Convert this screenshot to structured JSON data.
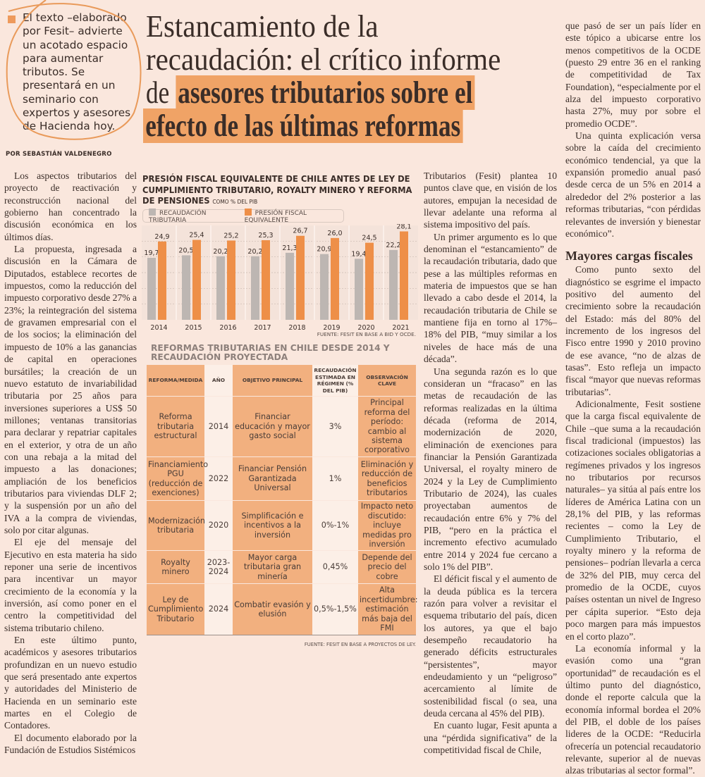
{
  "colors": {
    "accent": "#f0a366",
    "gray_bar": "#bdb6b2",
    "orange_bar": "#ee8f48",
    "background": "#fae7dd"
  },
  "blurb": {
    "icon": "square-bullet-icon",
    "text": "El texto –elaborado por Fesit– advierte un acotado espacio para aumentar tributos. Se presentará en un seminario con expertos y asesores de Hacienda hoy."
  },
  "byline": "POR SEBASTIÁN VALDENEGRO",
  "headline": {
    "line1": "Estancamiento de la",
    "line2": "recaudación: el crítico informe",
    "line3_plain": "de",
    "line3_mark": "asesores tributarios sobre el",
    "line4_mark": "efecto de las últimas reformas"
  },
  "column1": [
    "Los aspectos tributarios del proyecto de reactivación y reconstrucción nacional del gobierno han concentrado la discusión económica en los últimos días.",
    "La propuesta, ingresada a discusión en la Cámara de Diputados, establece recortes de impuestos, como la reducción del impuesto corporativo desde 27% a 23%; la reintegración del sistema de gravamen empresarial con el de los socios; la eliminación del impuesto de 10% a las ganancias de capital en operaciones bursátiles; la creación de un nuevo estatuto de invariabilidad tributaria por 25 años para inversiones superiores a US$ 50 millones; ventanas transitorias para declarar y repatriar capitales en el exterior, y otra de un año con una rebaja a la mitad del impuesto a las donaciones; ampliación de los beneficios tributarios para viviendas DLF 2; y la suspensión por un año del IVA a la compra de viviendas, solo por citar algunas.",
    "El eje del mensaje del Ejecutivo en esta materia ha sido reponer una serie de incentivos para incentivar un mayor crecimiento de la economía y la inversión, así como poner en el centro la competitividad del sistema tributario chileno.",
    "En este último punto, académicos y asesores tributarios profundizan en un nuevo estudio que será presentado ante expertos y autoridades del Ministerio de Hacienda en un seminario este martes en el Colegio de Contadores.",
    "El documento elaborado por la Fundación de Estudios Sistémicos"
  ],
  "column3": [
    "Tributarios (Fesit) plantea 10 puntos clave que, en visión de los autores, empujan la necesidad de llevar adelante una reforma al sistema impositivo del país.",
    "Un primer argumento es lo que denominan el “estancamiento” de la recaudación tributaria, dado que pese a las múltiples reformas en materia de impuestos que se han llevado a cabo desde el 2014, la recaudación tributaria de Chile se mantiene fija en torno al 17%–18% del PIB, “muy similar a los niveles de hace más de una década”.",
    "Una segunda razón es lo que consideran un “fracaso” en las metas de recaudación de las reformas realizadas en la última década (reforma de 2014, modernización de 2020, eliminación de exenciones para financiar la Pensión Garantizada Universal, el royalty minero de 2024 y la Ley de Cumplimiento Tributario de 2024), las cuales proyectaban aumentos de recaudación entre 6% y 7% del PIB, “pero en la práctica el incremento efectivo acumulado entre 2014 y 2024 fue cercano a solo 1% del PIB”.",
    "El déficit fiscal y el aumento de la deuda pública es la tercera razón para volver a revisitar el esquema tributario del país, dicen los autores, ya que el bajo desempeño recaudatorio ha generado déficits estructurales “persistentes”, mayor endeudamiento y un “peligroso” acercamiento al límite de sostenibilidad fiscal (o sea, una deuda cercana al 45% del PIB).",
    "En cuanto lugar, Fesit apunta a una “pérdida significativa” de la competitividad fiscal de Chile,"
  ],
  "column4": {
    "before": [
      "que pasó de ser un país líder en este tópico a ubicarse entre los menos competitivos de la OCDE (puesto 29 entre 36 en el ranking de competitividad de Tax Foundation), “especialmente por el alza del impuesto corporativo hasta 27%, muy por sobre el promedio OCDE”.",
      "Una quinta explicación versa sobre la caída del crecimiento económico tendencial, ya que la expansión promedio anual pasó desde cerca de un 5% en 2014 a alrededor del 2% posterior a las reformas tributarias, “con pérdidas relevantes de inversión y bienestar económico”."
    ],
    "subhead": "Mayores cargas fiscales",
    "after": [
      "Como punto sexto del diagnóstico se esgrime el impacto positivo del aumento del crecimiento sobre la recaudación del Estado: más del 80% del incremento de los ingresos del Fisco entre 1990 y 2010 provino de ese avance, “no de alzas de tasas”. Esto refleja un impacto fiscal “mayor que nuevas reformas tributarias”.",
      "Adicionalmente, Fesit sostiene que la carga fiscal equivalente de Chile –que suma a la recaudación fiscal tradicional (impuestos) las cotizaciones sociales obligatorias a regímenes privados y los ingresos no tributarios por recursos naturales– ya sitúa al país entre los líderes de América Latina con un 28,1% del PIB, y las reformas recientes – como la Ley de Cumplimiento Tributario, el royalty minero y la reforma de pensiones– podrían llevarla a cerca de 32% del PIB, muy cerca del promedio de la OCDE, cuyos países ostentan un nivel de Ingreso per cápita superior. “Esto deja poco margen para más impuestos en el corto plazo”.",
      "La economía informal y la evasión como una “gran oportunidad” de recaudación es el último punto del diagnóstico, donde el reporte calcula que la economía informal bordea el 20% del PIB, el doble de los países lideres de la OCDE: “Reducirla ofrecería un potencial recaudatorio relevante, superior al de nuevas alzas tributarias al sector formal”."
    ]
  },
  "chart_data": {
    "type": "bar",
    "title": "PRESIÓN FISCAL EQUIVALENTE DE CHILE ANTES DE LEY DE CUMPLIMIENTO TRIBUTARIO, ROYALTY MINERO Y REFORMA DE PENSIONES",
    "title_lines": [
      "PRESIÓN FISCAL EQUIVALENTE DE CHILE ANTES DE LEY DE",
      "CUMPLIMIENTO TRIBUTARIO, ROYALTY MINERO Y REFORMA",
      "DE PENSIONES"
    ],
    "subtitle": "COMO % DEL PIB",
    "categories": [
      "2014",
      "2015",
      "2016",
      "2017",
      "2018",
      "2019",
      "2020",
      "2021"
    ],
    "series": [
      {
        "name": "RECAUDACIÓN TRIBUTARIA",
        "color": "#bdb6b2",
        "values": [
          19.7,
          20.5,
          20.2,
          20.2,
          21.3,
          20.9,
          19.4,
          22.2
        ],
        "labels": [
          "19,7",
          "20,5",
          "20,2",
          "20,2",
          "21,3",
          "20,9",
          "19,4",
          "22,2"
        ]
      },
      {
        "name": "PRESIÓN FISCAL EQUIVALENTE",
        "color": "#ee8f48",
        "values": [
          24.9,
          25.4,
          25.2,
          25.3,
          26.7,
          26.0,
          24.5,
          28.1
        ],
        "labels": [
          "24,9",
          "25,4",
          "25,2",
          "25,3",
          "26,7",
          "26,0",
          "24,5",
          "28,1"
        ]
      }
    ],
    "ylim": [
      0,
      30
    ],
    "grid": true,
    "legend": "top",
    "xlabel": "",
    "ylabel": "",
    "source": "FUENTE: FESIT EN BASE A BID Y OCDE."
  },
  "table": {
    "title": "REFORMAS TRIBUTARIAS EN CHILE DESDE 2014 Y RECAUDACIÓN PROYECTADA",
    "headers": [
      "REFORMA/MEDIDA",
      "AÑO",
      "OBJETIVO PRINCIPAL",
      "RECAUDACIÓN ESTIMADA EN RÉGIMEN (% DEL PIB)",
      "OBSERVACIÓN CLAVE"
    ],
    "rows": [
      [
        "Reforma tributaria estructural",
        "2014",
        "Financiar educación y mayor gasto social",
        "3%",
        "Principal reforma del período: cambio al sistema corporativo"
      ],
      [
        "Financiamiento PGU (reducción de exenciones)",
        "2022",
        "Financiar Pensión Garantizada Universal",
        "1%",
        "Eliminación y reducción de beneficios tributarios"
      ],
      [
        "Modernización tributaria",
        "2020",
        "Simplificación e incentivos a la inversión",
        "0%-1%",
        "Impacto neto discutido: incluye medidas pro inversión"
      ],
      [
        "Royalty minero",
        "2023-2024",
        "Mayor carga tributaria gran minería",
        "0,45%",
        "Depende del precio del cobre"
      ],
      [
        "Ley de Cumplimiento Tributario",
        "2024",
        "Combatir evasión y elusión",
        "0,5%-1,5%",
        "Alta incertidumbre: estimación más baja del FMI"
      ]
    ],
    "source": "FUENTE: FESIT EN BASE A PROYECTOS DE LEY."
  }
}
